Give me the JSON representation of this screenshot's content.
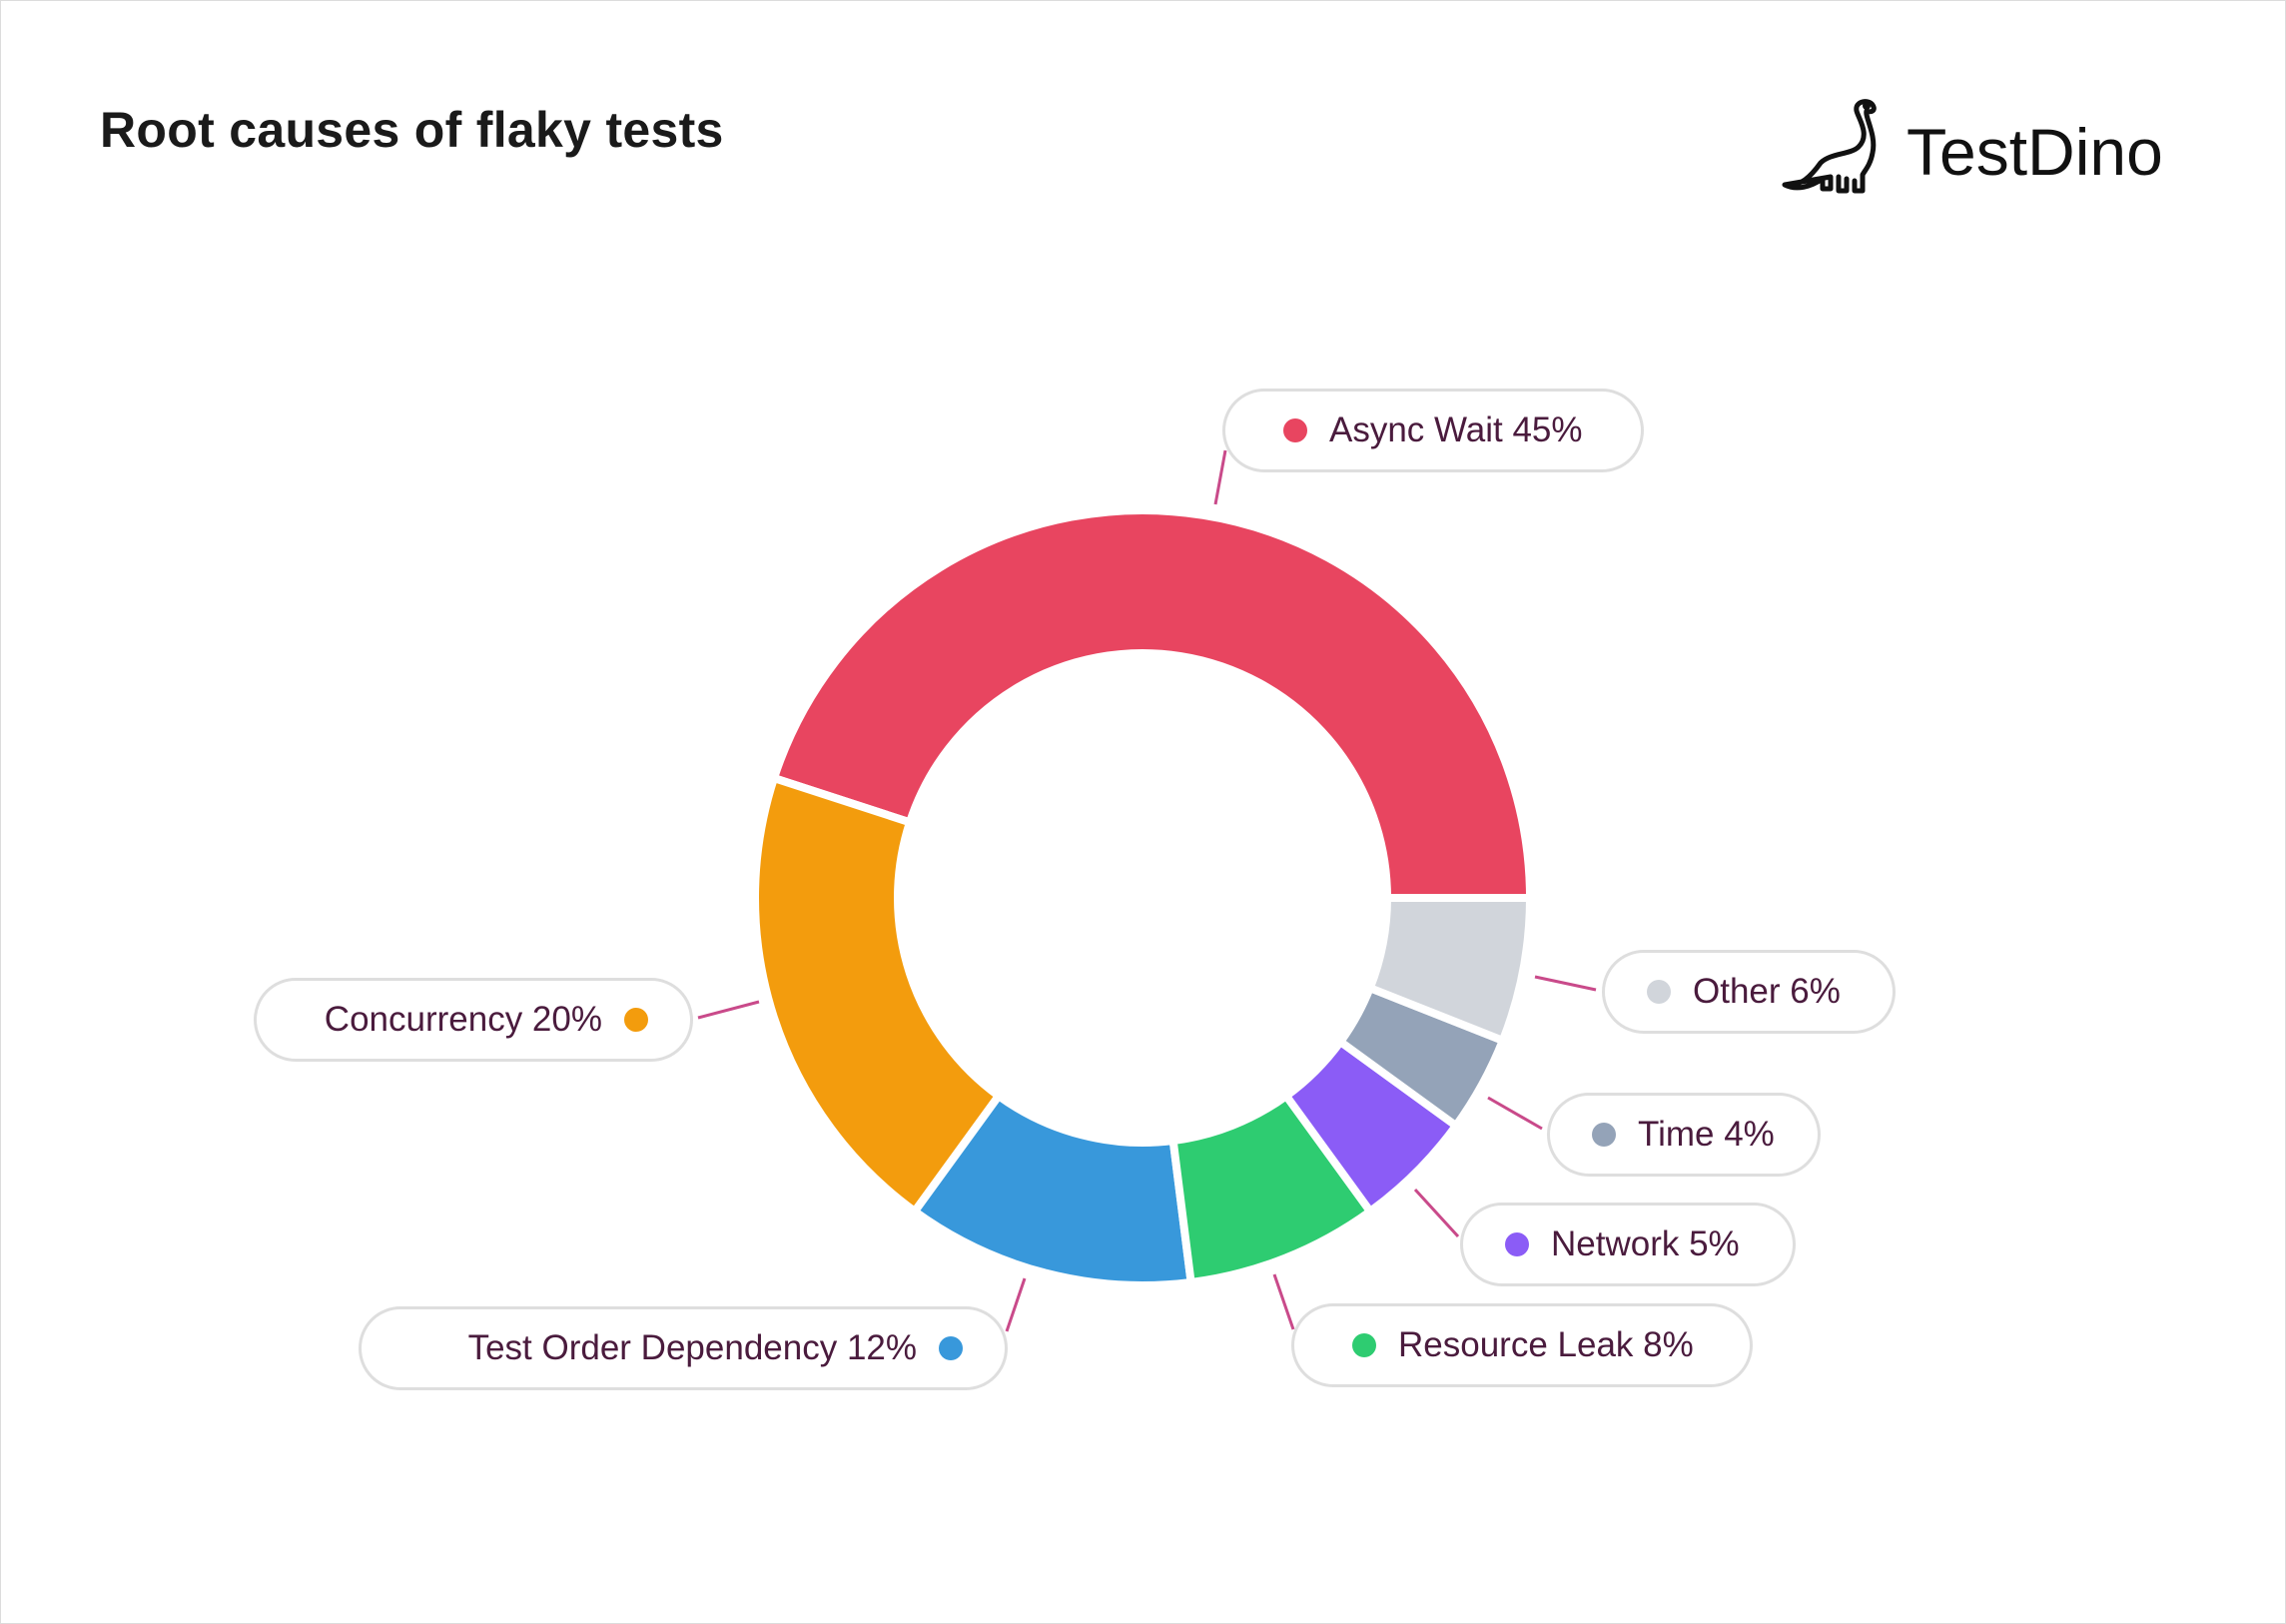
{
  "title": "Root causes of flaky tests",
  "logo": {
    "text": "TestDino",
    "icon": "dinosaur-icon"
  },
  "chart_data": {
    "type": "pie",
    "variant": "donut",
    "title": "Root causes of flaky tests",
    "start_angle": "3 o'clock, counterclockwise",
    "slices": [
      {
        "label": "Async Wait",
        "value": 45,
        "display": "Async Wait 45%",
        "color": "#e84560"
      },
      {
        "label": "Concurrency",
        "value": 20,
        "display": "Concurrency 20%",
        "color": "#f39c0d"
      },
      {
        "label": "Test Order Dependency",
        "value": 12,
        "display": "Test Order Dependency 12%",
        "color": "#3898db"
      },
      {
        "label": "Resource Leak",
        "value": 8,
        "display": "Resource Leak 8%",
        "color": "#2ecc71"
      },
      {
        "label": "Network",
        "value": 5,
        "display": "Network 5%",
        "color": "#8b5cf6"
      },
      {
        "label": "Time",
        "value": 4,
        "display": "Time 4%",
        "color": "#94a3b8"
      },
      {
        "label": "Other",
        "value": 6,
        "display": "Other 6%",
        "color": "#d1d5db"
      }
    ],
    "leader_color": "#c94a8a"
  }
}
